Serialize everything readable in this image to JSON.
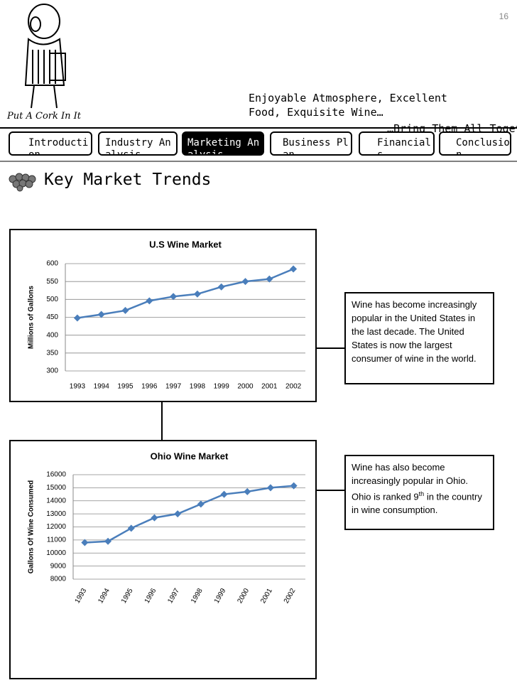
{
  "header": {
    "page_number": "16",
    "logo_caption": "Put A Cork In It",
    "tagline": "Enjoyable Atmosphere, Excellent Food, Exquisite Wine…",
    "tagline2": "…Bring Them All Together"
  },
  "nav": [
    "Introduction",
    "Industry Analysis",
    "Marketing Analysis",
    "Business Plan",
    "Financials",
    "Conclusion"
  ],
  "heading": "Key Market Trends",
  "notes": [
    {
      "text": "Wine has become increasingly popular in the United States in the last decade. The United States is now the largest consumer of wine in the world."
    },
    {
      "before": "Wine has also become increasingly popular in Ohio. Ohio is ranked 9",
      "sup": "th",
      "after": "in the country in wine consumption."
    }
  ],
  "chart_data": [
    {
      "type": "line",
      "title": "U.S Wine Market",
      "y_label": "Millions of Gallons",
      "categories": [
        "1993",
        "1994",
        "1995",
        "1996",
        "1997",
        "1998",
        "1999",
        "2000",
        "2001",
        "2002"
      ],
      "series": [
        {
          "color": "#4a7ebb",
          "values": [
            448,
            458,
            469,
            496,
            508,
            515,
            535,
            550,
            557,
            585
          ]
        }
      ],
      "ylim": [
        300,
        600
      ],
      "yticks": [
        300,
        350,
        400,
        450,
        500,
        550,
        600
      ],
      "grid": true,
      "x_label_rotation": 0
    },
    {
      "type": "line",
      "title": "Ohio Wine Market",
      "y_label": "Gallons Of Wine Consumed",
      "categories": [
        "1993",
        "1994",
        "1995",
        "1996",
        "1997",
        "1998",
        "1999",
        "2000",
        "2001",
        "2002"
      ],
      "series": [
        {
          "color": "#4a7ebb",
          "values": [
            10800,
            10900,
            11900,
            12700,
            13000,
            13750,
            14500,
            14700,
            15000,
            15150
          ]
        }
      ],
      "ylim": [
        8000,
        16000
      ],
      "yticks": [
        8000,
        9000,
        10000,
        11000,
        12000,
        13000,
        14000,
        15000,
        16000
      ],
      "grid": true,
      "x_label_rotation": -60
    }
  ]
}
